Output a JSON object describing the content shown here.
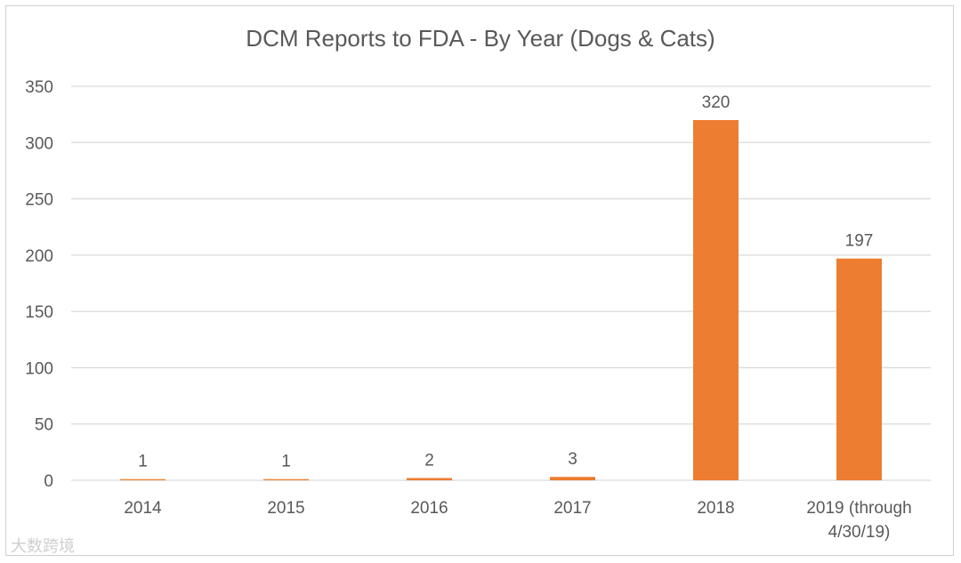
{
  "chart_data": {
    "type": "bar",
    "title": "DCM Reports to FDA - By Year (Dogs & Cats)",
    "categories": [
      "2014",
      "2015",
      "2016",
      "2017",
      "2018",
      "2019 (through 4/30/19)"
    ],
    "category_lines": [
      [
        "2014"
      ],
      [
        "2015"
      ],
      [
        "2016"
      ],
      [
        "2017"
      ],
      [
        "2018"
      ],
      [
        "2019 (through",
        "4/30/19)"
      ]
    ],
    "values": [
      1,
      1,
      2,
      3,
      320,
      197
    ],
    "data_labels": [
      "1",
      "1",
      "2",
      "3",
      "320",
      "197"
    ],
    "xlabel": "",
    "ylabel": "",
    "ylim": [
      0,
      350
    ],
    "yticks": [
      0,
      50,
      100,
      150,
      200,
      250,
      300,
      350
    ],
    "grid": true,
    "legend": "none",
    "bar_color": "#ED7D31",
    "grid_color": "#D9D9D9",
    "text_color": "#595959"
  },
  "watermark": "大数跨境"
}
